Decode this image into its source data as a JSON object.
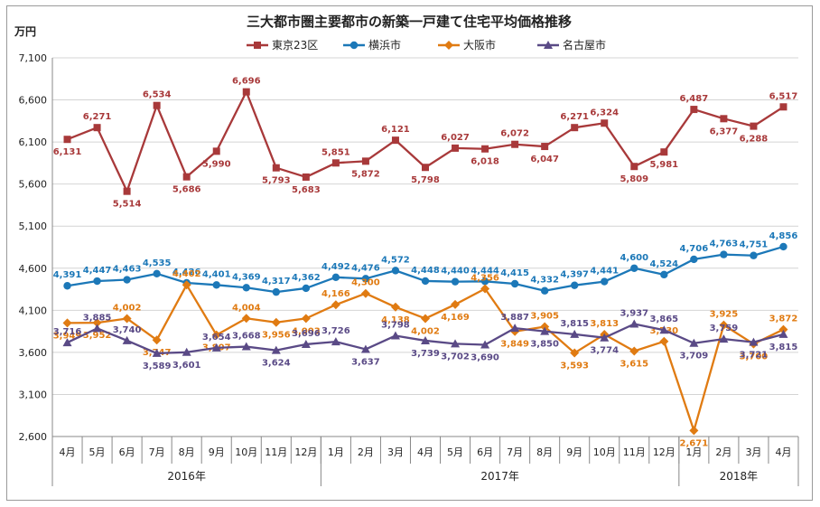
{
  "chart_data": {
    "type": "line",
    "title": "三大都市圏主要都市の新築一戸建て住宅平均価格推移",
    "ylabel": "万円",
    "ylim": [
      2600,
      7100
    ],
    "yticks": [
      "2,600",
      "3,100",
      "3,600",
      "4,100",
      "4,600",
      "5,100",
      "5,600",
      "6,100",
      "6,600",
      "7,100"
    ],
    "categories": [
      "4月",
      "5月",
      "6月",
      "7月",
      "8月",
      "9月",
      "10月",
      "11月",
      "12月",
      "1月",
      "2月",
      "3月",
      "4月",
      "5月",
      "6月",
      "7月",
      "8月",
      "9月",
      "10月",
      "11月",
      "12月",
      "1月",
      "2月",
      "3月",
      "4月"
    ],
    "years": [
      {
        "label": "2016年",
        "start": 0,
        "end": 8
      },
      {
        "label": "2017年",
        "start": 9,
        "end": 20
      },
      {
        "label": "2018年",
        "start": 21,
        "end": 24
      }
    ],
    "series": [
      {
        "name": "東京23区",
        "color": "#a8393a",
        "marker": "square",
        "values": [
          6131,
          6271,
          5514,
          6534,
          5686,
          5990,
          6696,
          5793,
          5683,
          5851,
          5872,
          6121,
          5798,
          6027,
          6018,
          6072,
          6047,
          6271,
          6324,
          5809,
          5981,
          6487,
          6377,
          6288,
          6517
        ],
        "labels": [
          "6,131",
          "6,271",
          "5,514",
          "6,534",
          "5,686",
          "5,990",
          "6,696",
          "5,793",
          "5,683",
          "5,851",
          "5,872",
          "6,121",
          "5,798",
          "6,027",
          "6,018",
          "6,072",
          "6,047",
          "6,271",
          "6,324",
          "5,809",
          "5,981",
          "6,487",
          "6,377",
          "6,288",
          "6,517"
        ]
      },
      {
        "name": "横浜市",
        "color": "#1c78b8",
        "marker": "circle",
        "values": [
          4391,
          4447,
          4463,
          4535,
          4426,
          4401,
          4369,
          4317,
          4362,
          4492,
          4476,
          4572,
          4448,
          4440,
          4444,
          4415,
          4332,
          4397,
          4441,
          4600,
          4524,
          4706,
          4763,
          4751,
          4856
        ],
        "labels": [
          "4,391",
          "4,447",
          "4,463",
          "4,535",
          "4,426",
          "4,401",
          "4,369",
          "4,317",
          "4,362",
          "4,492",
          "4,476",
          "4,572",
          "4,448",
          "4,440",
          "4,444",
          "4,415",
          "4,332",
          "4,397",
          "4,441",
          "4,600",
          "4,524",
          "4,706",
          "4,763",
          "4,751",
          "4,856"
        ]
      },
      {
        "name": "大阪市",
        "color": "#e07b12",
        "marker": "diamond",
        "values": [
          3949,
          3952,
          4002,
          3747,
          4402,
          3807,
          4004,
          3956,
          4003,
          4166,
          4300,
          4138,
          4002,
          4169,
          4356,
          3849,
          3905,
          3593,
          3813,
          3615,
          3730,
          2671,
          3925,
          3700,
          3872
        ],
        "labels": [
          "3,949",
          "3,952",
          "4,002",
          "3,747",
          "4,402",
          "3,807",
          "4,004",
          "3,956",
          "4,003",
          "4,166",
          "4,300",
          "4,138",
          "4,002",
          "4,169",
          "4,356",
          "3,849",
          "3,905",
          "3,593",
          "3,813",
          "3,615",
          "3,730",
          "2,671",
          "3,925",
          "3,700",
          "3,872"
        ]
      },
      {
        "name": "名古屋市",
        "color": "#5a4a86",
        "marker": "triangle",
        "values": [
          3716,
          3885,
          3740,
          3589,
          3601,
          3654,
          3668,
          3624,
          3696,
          3726,
          3637,
          3798,
          3739,
          3702,
          3690,
          3887,
          3850,
          3815,
          3774,
          3937,
          3865,
          3709,
          3759,
          3721,
          3815
        ],
        "labels": [
          "3,716",
          "3,885",
          "3,740",
          "3,589",
          "3,601",
          "3,654",
          "3,668",
          "3,624",
          "3,696",
          "3,726",
          "3,637",
          "3,798",
          "3,739",
          "3,702",
          "3,690",
          "3,887",
          "3,850",
          "3,815",
          "3,774",
          "3,937",
          "3,865",
          "3,709",
          "3,759",
          "3,721",
          "3,815"
        ]
      }
    ]
  }
}
